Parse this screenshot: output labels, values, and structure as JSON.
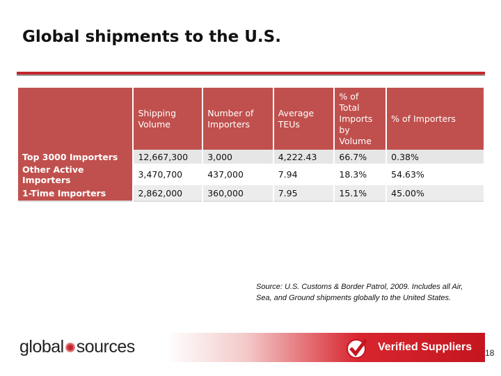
{
  "header": {
    "title": "Global shipments to the U.S."
  },
  "table": {
    "columns": [
      "Shipping Volume",
      "Number of Importers",
      "Average TEUs",
      "% of Total Imports by Volume",
      "% of Importers"
    ],
    "rows": [
      [
        "Top 3000 Importers",
        "12,667,300",
        "3,000",
        "4,222.43",
        "66.7%",
        "0.38%"
      ],
      [
        "Other Active Importers",
        "3,470,700",
        "437,000",
        "7.94",
        "18.3%",
        "54.63%"
      ],
      [
        "1-Time Importers",
        "2,862,000",
        "360,000",
        "7.95",
        "15.1%",
        "45.00%"
      ]
    ]
  },
  "source": "Source: U.S. Customs & Border Patrol, 2009. Includes all Air, Sea, and Ground shipments globally to the United States.",
  "footer": {
    "logo": [
      "global",
      "sources"
    ],
    "badge": "Verified Suppliers",
    "page": "18"
  }
}
